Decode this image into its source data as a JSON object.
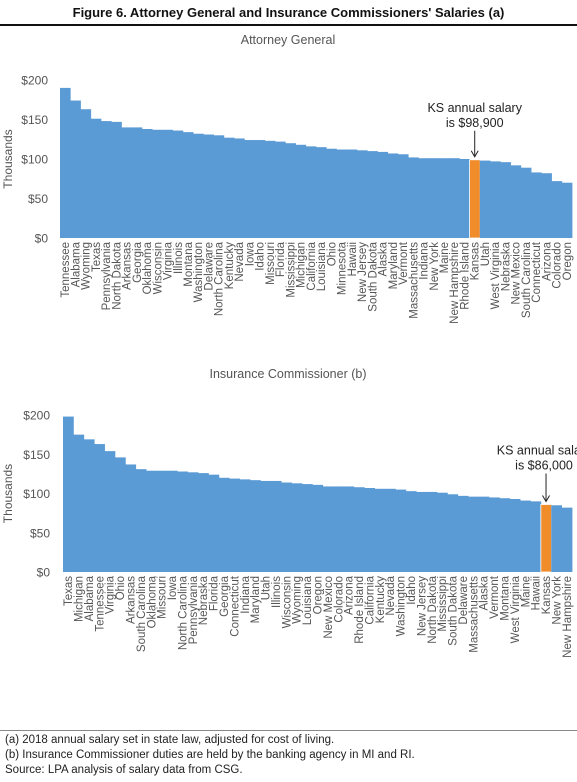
{
  "figure_title": "Figure 6. Attorney General and Insurance Commissioners' Salaries (a)",
  "footnotes": {
    "a": "(a) 2018 annual salary set in state law, adjusted for cost of living.",
    "b": "(b) Insurance Commissioner duties are held by the banking agency in MI and RI.",
    "source": "Source: LPA analysis of salary data from CSG."
  },
  "colors": {
    "bar": "#5b9bd5",
    "highlight": "#f08c2a",
    "text": "#555555"
  },
  "chart_data": [
    {
      "type": "bar",
      "title": "Attorney General",
      "ylabel": "Thousands",
      "ylim": [
        0,
        200
      ],
      "ticks": [
        "$0",
        "$50",
        "$100",
        "$150",
        "$200"
      ],
      "annotation": {
        "line1": "KS annual salary",
        "line2": "is $98,900",
        "category": "Kansas"
      },
      "highlight": "Kansas",
      "categories": [
        "Tennessee",
        "Alabama",
        "Wyoming",
        "Texas",
        "Pennsylvania",
        "North Dakota",
        "Arkansas",
        "Georgia",
        "Oklahoma",
        "Wisconsin",
        "Virginia",
        "Illinois",
        "Montana",
        "Washington",
        "Delaware",
        "North Carolina",
        "Kentucky",
        "Nevada",
        "Iowa",
        "Idaho",
        "Missouri",
        "Florida",
        "Mississippi",
        "Michigan",
        "California",
        "Louisiana",
        "Ohio",
        "Minnesota",
        "Hawaii",
        "New Jersey",
        "South Dakota",
        "Alaska",
        "Maryland",
        "Vermont",
        "Massachusetts",
        "Indiana",
        "New York",
        "Maine",
        "New Hampshire",
        "Rhode Island",
        "Kansas",
        "Utah",
        "West Virginia",
        "Nebraska",
        "New Mexico",
        "South Carolina",
        "Connecticut",
        "Arizona",
        "Colorado",
        "Oregon"
      ],
      "values": [
        190,
        174,
        163,
        151,
        148,
        147,
        140,
        140,
        138,
        137,
        137,
        136,
        134,
        132,
        131,
        130,
        127,
        126,
        124,
        124,
        123,
        122,
        120,
        118,
        116,
        115,
        113,
        112,
        112,
        111,
        110,
        109,
        107,
        106,
        102,
        101,
        101,
        101,
        101,
        100,
        99,
        98,
        97,
        96,
        92,
        89,
        83,
        82,
        72,
        70
      ]
    },
    {
      "type": "bar",
      "title": "Insurance Commissioner (b)",
      "ylabel": "Thousands",
      "ylim": [
        0,
        200
      ],
      "ticks": [
        "$0",
        "$50",
        "$100",
        "$150",
        "$200"
      ],
      "annotation": {
        "line1": "KS annual salary",
        "line2": "is $86,000",
        "category": "Kansas"
      },
      "highlight": "Kansas",
      "categories": [
        "Texas",
        "Michigan",
        "Alabama",
        "Tennessee",
        "Virginia",
        "Ohio",
        "Arkansas",
        "South Carolina",
        "Oklahoma",
        "Missouri",
        "Iowa",
        "North Carolina",
        "Pennsylvania",
        "Nebraska",
        "Florida",
        "Georgia",
        "Connecticut",
        "Indiana",
        "Maryland",
        "Utah",
        "Illinois",
        "Wisconsin",
        "Wyoming",
        "Louisiana",
        "Oregon",
        "New Mexico",
        "Colorado",
        "Arizona",
        "Rhode Island",
        "California",
        "Kentucky",
        "Nevada",
        "Washington",
        "Idaho",
        "New Jersey",
        "North Dakota",
        "Mississippi",
        "South Dakota",
        "Delaware",
        "Massachusetts",
        "Alaska",
        "Vermont",
        "Montana",
        "West Virginia",
        "Maine",
        "Hawaii",
        "Kansas",
        "New York",
        "New Hampshire"
      ],
      "values": [
        198,
        175,
        169,
        163,
        154,
        146,
        137,
        131,
        129,
        129,
        129,
        128,
        127,
        126,
        124,
        120,
        119,
        118,
        117,
        116,
        116,
        114,
        113,
        112,
        111,
        109,
        109,
        109,
        108,
        107,
        106,
        106,
        105,
        103,
        102,
        102,
        101,
        99,
        97,
        96,
        96,
        95,
        94,
        93,
        91,
        90,
        86,
        85,
        82
      ]
    }
  ]
}
